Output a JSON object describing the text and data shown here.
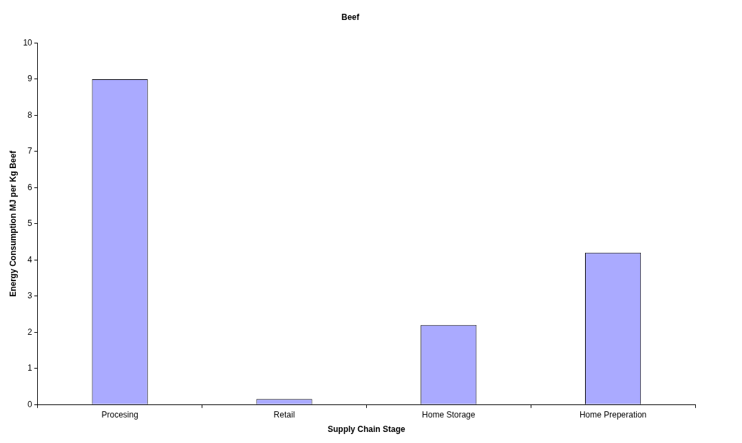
{
  "chart_data": {
    "type": "bar",
    "title": "Beef",
    "xlabel": "Supply Chain Stage",
    "ylabel": "Energy Consumption MJ per Kg Beef",
    "categories": [
      "Procesing",
      "Retail",
      "Home Storage",
      "Home Preperation"
    ],
    "values": [
      9,
      0.15,
      2.2,
      4.2
    ],
    "color": "#aaaaff",
    "ylim": [
      0,
      10
    ],
    "yticks": [
      0,
      1,
      2,
      3,
      4,
      5,
      6,
      7,
      8,
      9,
      10
    ]
  }
}
